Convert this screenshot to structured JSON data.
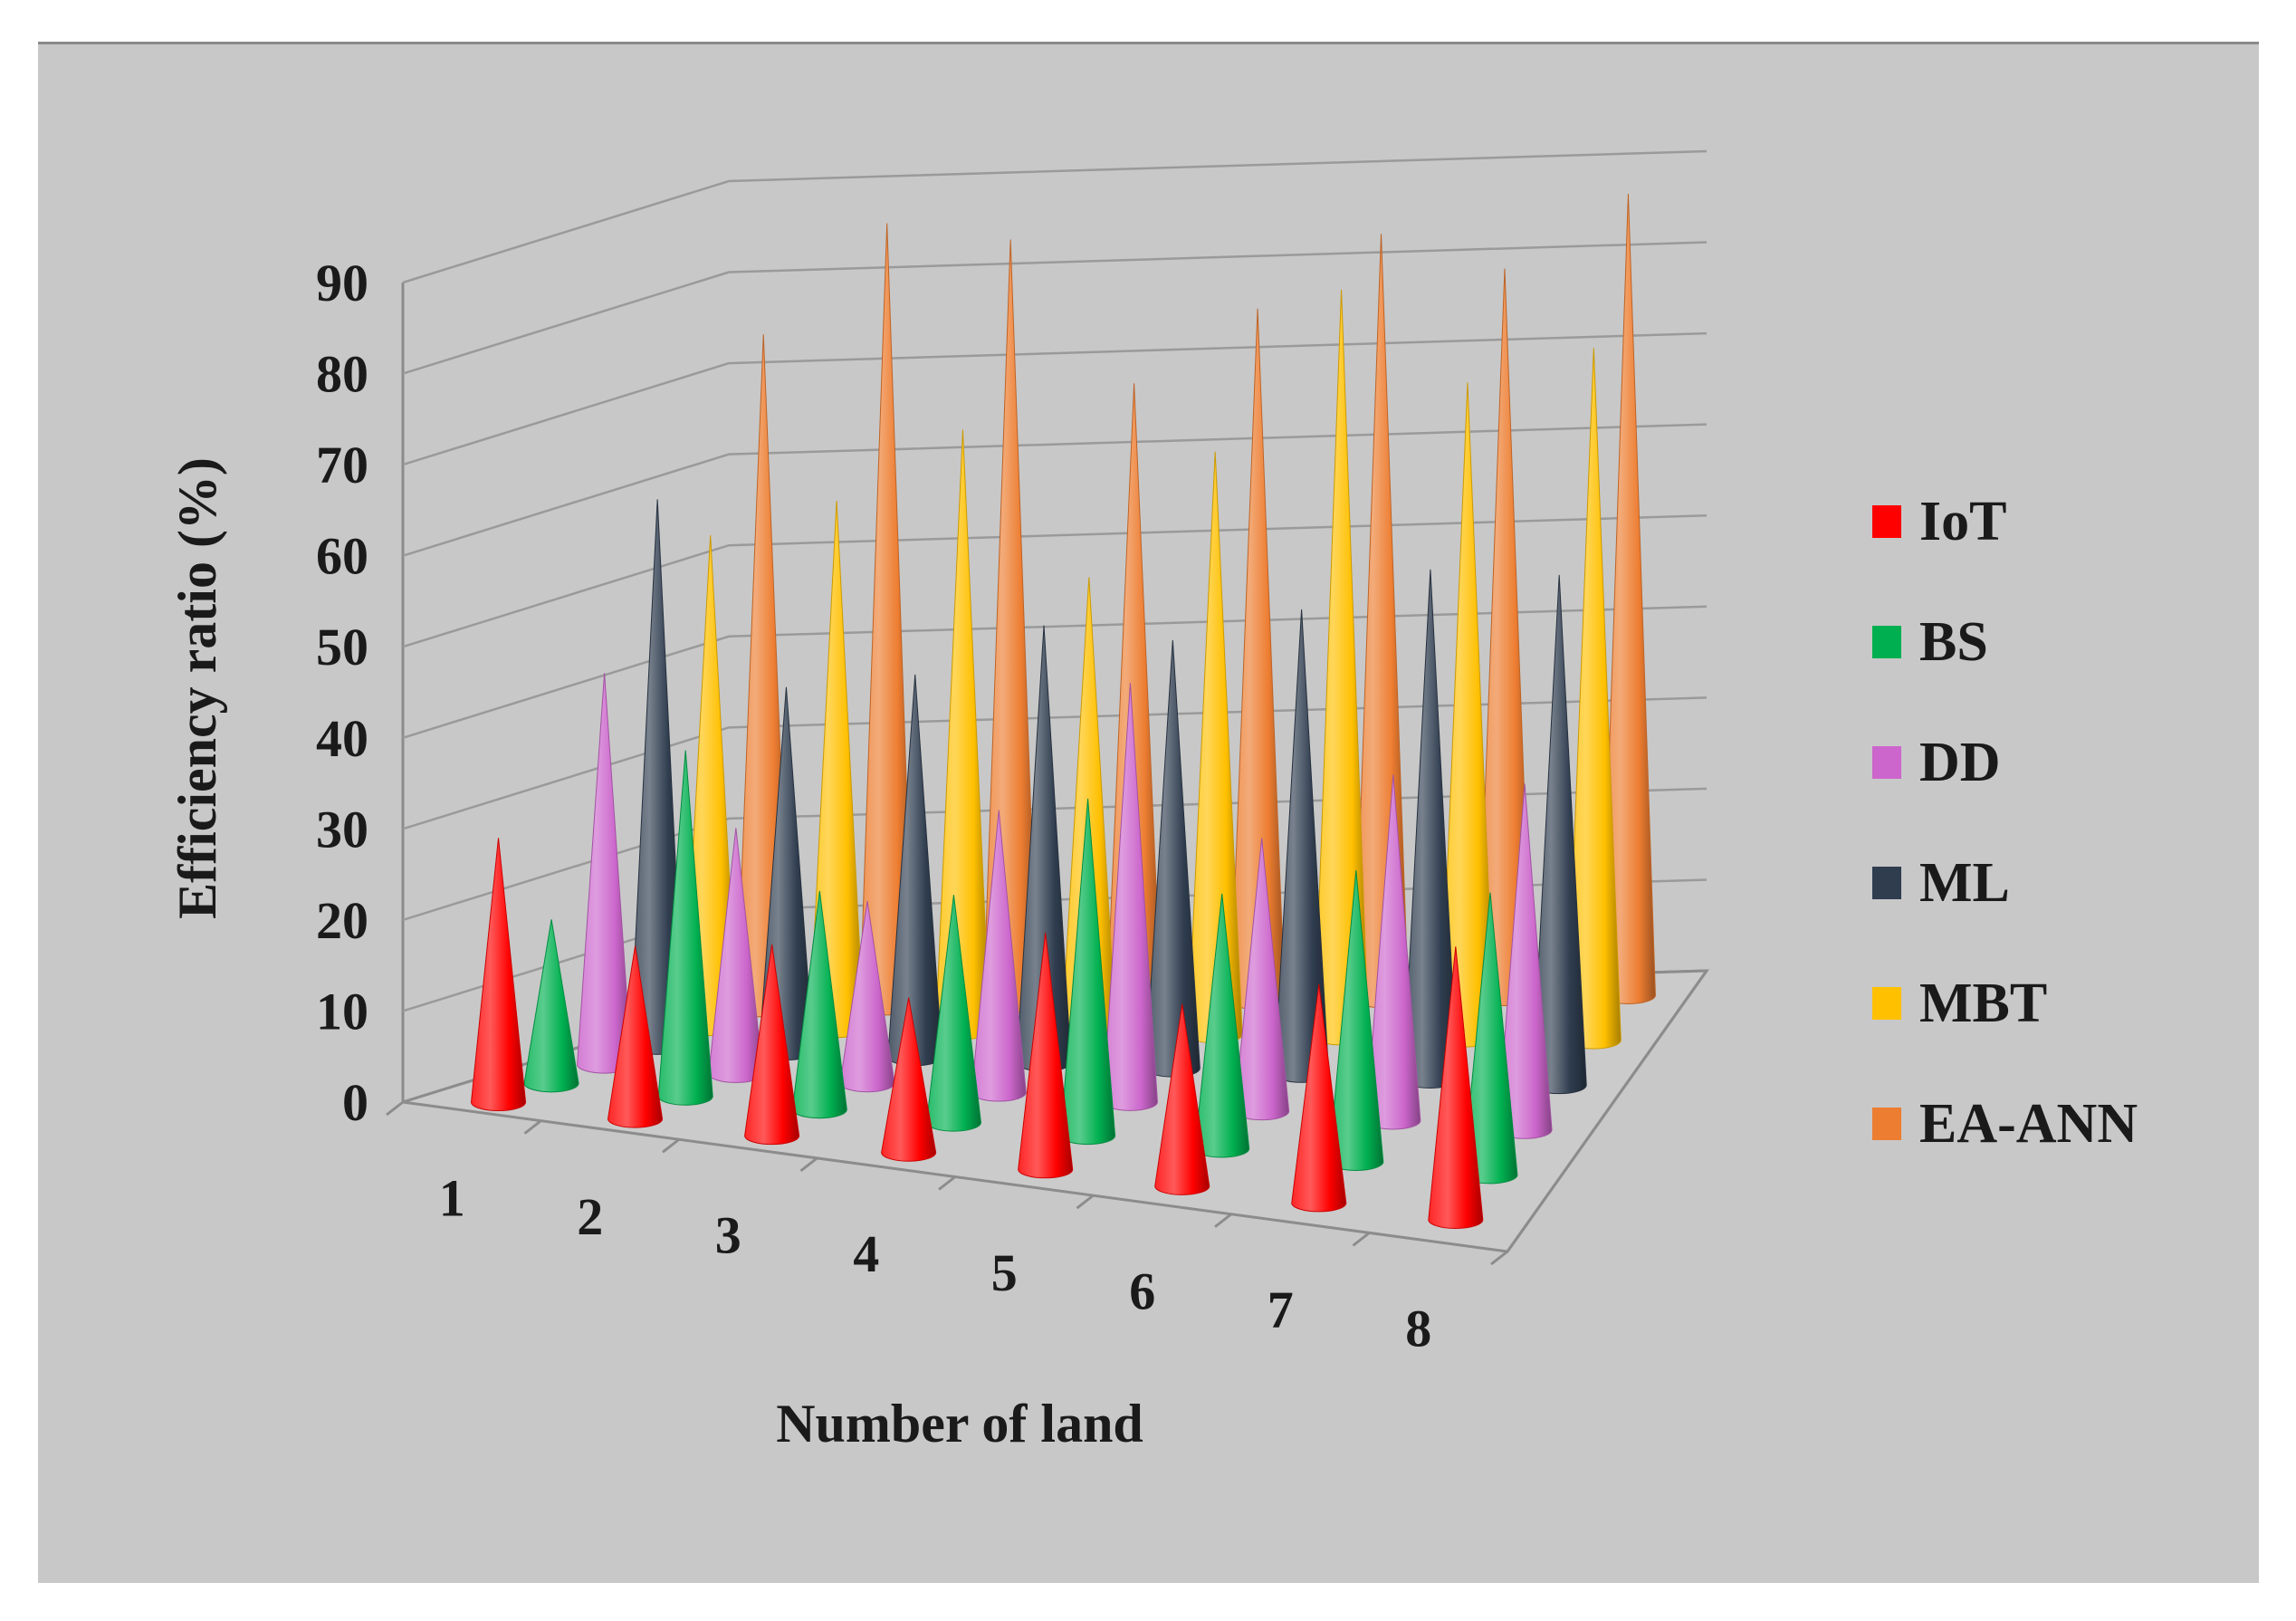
{
  "chart_data": {
    "type": "bar",
    "subtype": "3d-cone",
    "title": "",
    "xlabel": "Number of land",
    "ylabel": "Efficiency ratio (%)",
    "ylim": [
      0,
      90
    ],
    "yticks": [
      "0",
      "10",
      "20",
      "30",
      "40",
      "50",
      "60",
      "70",
      "80",
      "90"
    ],
    "categories": [
      "1",
      "2",
      "3",
      "4",
      "5",
      "6",
      "7",
      "8"
    ],
    "series": [
      {
        "name": "IoT",
        "color": "#ff0000",
        "values": [
          29,
          19,
          21,
          17,
          26,
          20,
          24,
          30
        ]
      },
      {
        "name": "BS",
        "color": "#00b050",
        "values": [
          18,
          38,
          24,
          25,
          37,
          28,
          32,
          31
        ]
      },
      {
        "name": "DD",
        "color": "#cc66cc",
        "values": [
          43,
          27,
          20,
          31,
          46,
          30,
          38,
          38
        ]
      },
      {
        "name": "ML",
        "color": "#2f3d4f",
        "values": [
          60,
          40,
          42,
          48,
          47,
          51,
          56,
          56
        ]
      },
      {
        "name": "MBT",
        "color": "#ffc000",
        "values": [
          54,
          58,
          66,
          50,
          64,
          82,
          72,
          76
        ]
      },
      {
        "name": "EA-ANN",
        "color": "#ed7d31",
        "values": [
          74,
          86,
          84,
          68,
          76,
          84,
          80,
          88
        ]
      }
    ],
    "grid": true,
    "legend_position": "right"
  }
}
